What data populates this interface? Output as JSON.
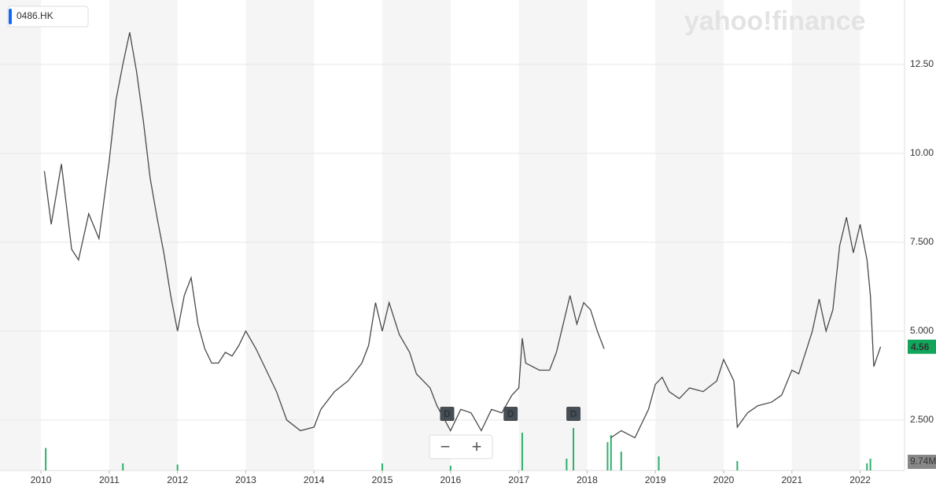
{
  "chart_data": {
    "type": "line",
    "symbol": "0486.HK",
    "watermark": "yahoo!finance",
    "x": [
      2010.05,
      2010.15,
      2010.3,
      2010.45,
      2010.55,
      2010.7,
      2010.85,
      2011.0,
      2011.1,
      2011.2,
      2011.3,
      2011.4,
      2011.5,
      2011.6,
      2011.7,
      2011.8,
      2011.9,
      2012.0,
      2012.1,
      2012.2,
      2012.3,
      2012.4,
      2012.5,
      2012.6,
      2012.7,
      2012.8,
      2012.9,
      2013.0,
      2013.15,
      2013.3,
      2013.45,
      2013.6,
      2013.8,
      2014.0,
      2014.1,
      2014.3,
      2014.5,
      2014.7,
      2014.8,
      2014.9,
      2015.0,
      2015.1,
      2015.25,
      2015.4,
      2015.5,
      2015.7,
      2015.8,
      2016.0,
      2016.15,
      2016.3,
      2016.45,
      2016.6,
      2016.75,
      2016.9,
      2017.0,
      2017.05,
      2017.1,
      2017.3,
      2017.45,
      2017.55,
      2017.7,
      2017.75,
      2017.85,
      2017.95,
      2018.05,
      2018.15,
      2018.25,
      2018.3,
      2018.35,
      2018.5,
      2018.7,
      2018.9,
      2019.0,
      2019.1,
      2019.2,
      2019.35,
      2019.5,
      2019.7,
      2019.9,
      2020.0,
      2020.15,
      2020.2,
      2020.35,
      2020.5,
      2020.7,
      2020.85,
      2021.0,
      2021.1,
      2021.2,
      2021.3,
      2021.4,
      2021.5,
      2021.6,
      2021.7,
      2021.8,
      2021.9,
      2022.0,
      2022.1,
      2022.15,
      2022.2,
      2022.3
    ],
    "series": [
      {
        "name": "0486.HK",
        "color": "#4a4a4a",
        "values": [
          9.5,
          8.0,
          9.7,
          7.3,
          7.0,
          8.3,
          7.6,
          9.8,
          11.5,
          12.5,
          13.4,
          12.3,
          10.9,
          9.3,
          8.2,
          7.2,
          6.0,
          5.0,
          6.0,
          6.5,
          5.2,
          4.5,
          4.1,
          4.1,
          4.4,
          4.3,
          4.6,
          5.0,
          4.5,
          3.9,
          3.3,
          2.5,
          2.2,
          2.3,
          2.8,
          3.3,
          3.6,
          4.1,
          4.6,
          5.8,
          5.0,
          5.8,
          4.9,
          4.4,
          3.8,
          3.4,
          2.9,
          2.2,
          2.8,
          2.7,
          2.2,
          2.8,
          2.7,
          3.2,
          3.4,
          4.8,
          4.1,
          3.9,
          3.9,
          4.4,
          5.6,
          6.0,
          5.2,
          5.8,
          5.6,
          5.0,
          4.5,
          null,
          2.0,
          2.2,
          2.0,
          2.8,
          3.5,
          3.7,
          3.3,
          3.1,
          3.4,
          3.3,
          3.6,
          4.2,
          3.6,
          2.3,
          2.7,
          2.9,
          3.0,
          3.2,
          3.9,
          3.8,
          4.4,
          5.0,
          5.9,
          5.0,
          5.6,
          7.4,
          8.2,
          7.2,
          8.0,
          7.0,
          6.0,
          4.0,
          4.56
        ]
      }
    ],
    "last_price": 4.56,
    "last_price_color": "#11a65b",
    "volume": {
      "x": [
        2010.07,
        2011.2,
        2012.0,
        2015.0,
        2016.0,
        2017.05,
        2017.7,
        2017.8,
        2018.3,
        2018.35,
        2018.5,
        2019.05,
        2020.2,
        2022.1,
        2022.15
      ],
      "values": [
        9.5,
        3,
        2.5,
        3,
        2,
        16,
        5,
        18,
        12,
        15,
        8,
        6,
        4,
        3,
        5
      ],
      "ylim": [
        0,
        20
      ],
      "color": "#2eaf6a",
      "label": "9.74M"
    },
    "dividends": {
      "x": [
        2015.95,
        2016.88,
        2017.8
      ],
      "label": "D"
    },
    "zoom_out": "−",
    "zoom_in": "+",
    "xlim": [
      2009.4,
      2022.65
    ],
    "xticks": [
      2010,
      2011,
      2012,
      2013,
      2014,
      2015,
      2016,
      2017,
      2018,
      2019,
      2020,
      2021,
      2022
    ],
    "ylim": [
      1.08,
      14.31
    ],
    "yticks": [
      {
        "value": 2.5,
        "label": "2.500"
      },
      {
        "value": 5,
        "label": "5.000"
      },
      {
        "value": 7.5,
        "label": "7.500"
      },
      {
        "value": 10,
        "label": "10.00"
      },
      {
        "value": 12.5,
        "label": "12.50"
      }
    ],
    "grid": true
  }
}
